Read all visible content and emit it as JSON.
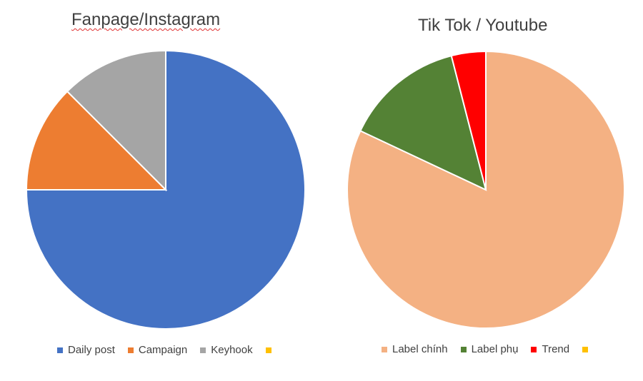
{
  "chart_data": [
    {
      "type": "pie",
      "title": "Fanpage/Instagram",
      "categories": [
        "Daily post",
        "Campaign",
        "Keyhook",
        ""
      ],
      "values": [
        75,
        12.5,
        12.5,
        0
      ],
      "colors": [
        "#4472C4",
        "#ED7D31",
        "#A5A5A5",
        "#FFC000"
      ],
      "legend_position": "bottom"
    },
    {
      "type": "pie",
      "title": "Tik Tok / Youtube",
      "categories": [
        "Label chính",
        "Label phụ",
        "Trend",
        ""
      ],
      "values": [
        82,
        14,
        4,
        0
      ],
      "colors": [
        "#F4B183",
        "#548235",
        "#FF0000",
        "#FFC000"
      ],
      "legend_position": "bottom"
    }
  ]
}
